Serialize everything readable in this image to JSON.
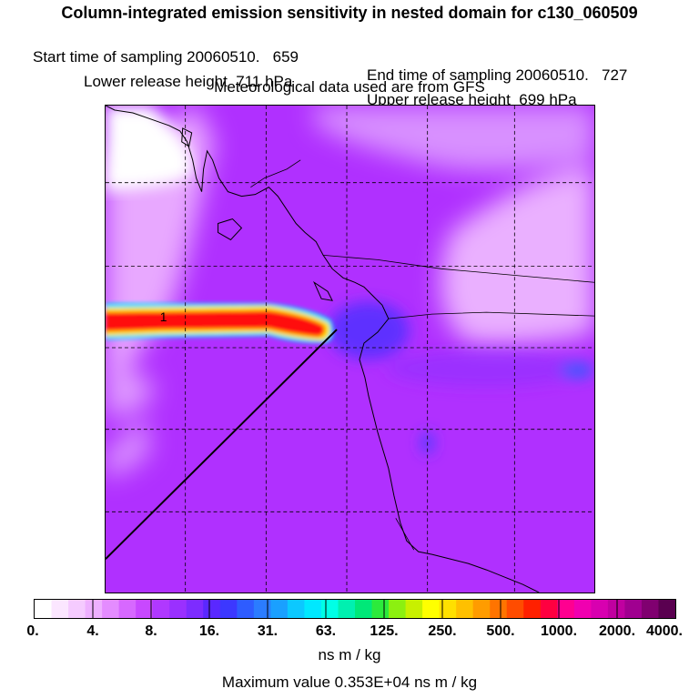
{
  "header": {
    "title": "Column-integrated emission sensitivity in nested domain for c130_060509",
    "start_label": "Start time of sampling 20060510.   659",
    "end_label": "End time of sampling 20060510.   727",
    "lower_label": "Lower release height  711 hPa",
    "upper_label": "Upper release height  699 hPa",
    "met_label": "Meteorological data used are from GFS"
  },
  "map": {
    "plume_label": "1",
    "gridlines": "dashed",
    "colors": {
      "background": "#b030ff",
      "light": "#e8a8ff",
      "plume_core": "#ff1010",
      "plume_outer": "#ffe000",
      "plume_edge": "#00e0ff"
    }
  },
  "colorbar": {
    "colors": [
      "#ffffff",
      "#fbe6ff",
      "#f5cbff",
      "#eeb0ff",
      "#e48cff",
      "#d768ff",
      "#c848ff",
      "#b038ff",
      "#9a30ff",
      "#7d2cff",
      "#5a28ff",
      "#3c38ff",
      "#2e5cff",
      "#2b7cff",
      "#1aa0ff",
      "#0cc8ff",
      "#00e8ff",
      "#00ffe6",
      "#00f0b0",
      "#00e878",
      "#2cea3c",
      "#8cf010",
      "#c8f000",
      "#ffff00",
      "#ffe000",
      "#ffc000",
      "#ff9c00",
      "#ff7400",
      "#ff4c00",
      "#ff2000",
      "#ff0040",
      "#ff0090",
      "#f000b0",
      "#d800b0",
      "#c000a0",
      "#a00090",
      "#800070",
      "#5a0050"
    ],
    "tick_labels": [
      "0.",
      "4.",
      "8.",
      "16.",
      "31.",
      "63.",
      "125.",
      "250.",
      "500.",
      "1000.",
      "2000.",
      "4000."
    ],
    "units": "ns m / kg",
    "max_value_text": "Maximum value  0.353E+04 ns m / kg"
  }
}
